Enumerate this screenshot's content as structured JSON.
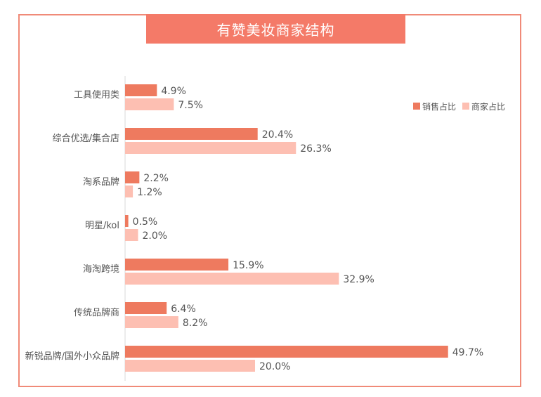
{
  "chart_data": {
    "type": "bar",
    "orientation": "horizontal",
    "title": "有赞美妆商家结构",
    "categories": [
      "工具使用类",
      "综合优选/集合店",
      "淘系品牌",
      "明星/kol",
      "海淘跨境",
      "传统品牌商",
      "新锐品牌/国外小众品牌"
    ],
    "series": [
      {
        "name": "销售占比",
        "values": [
          4.9,
          20.4,
          2.2,
          0.5,
          15.9,
          6.4,
          49.7
        ],
        "labels": [
          "4.9%",
          "20.4%",
          "2.2%",
          "0.5%",
          "15.9%",
          "6.4%",
          "49.7%"
        ],
        "color": "#ee7a5f"
      },
      {
        "name": "商家占比",
        "values": [
          7.5,
          26.3,
          1.2,
          2.0,
          32.9,
          8.2,
          20.0
        ],
        "labels": [
          "7.5%",
          "26.3%",
          "1.2%",
          "2.0%",
          "32.9%",
          "8.2%",
          "20.0%"
        ],
        "color": "#fdbfb2"
      }
    ],
    "legend_position": "right",
    "grid": false
  }
}
